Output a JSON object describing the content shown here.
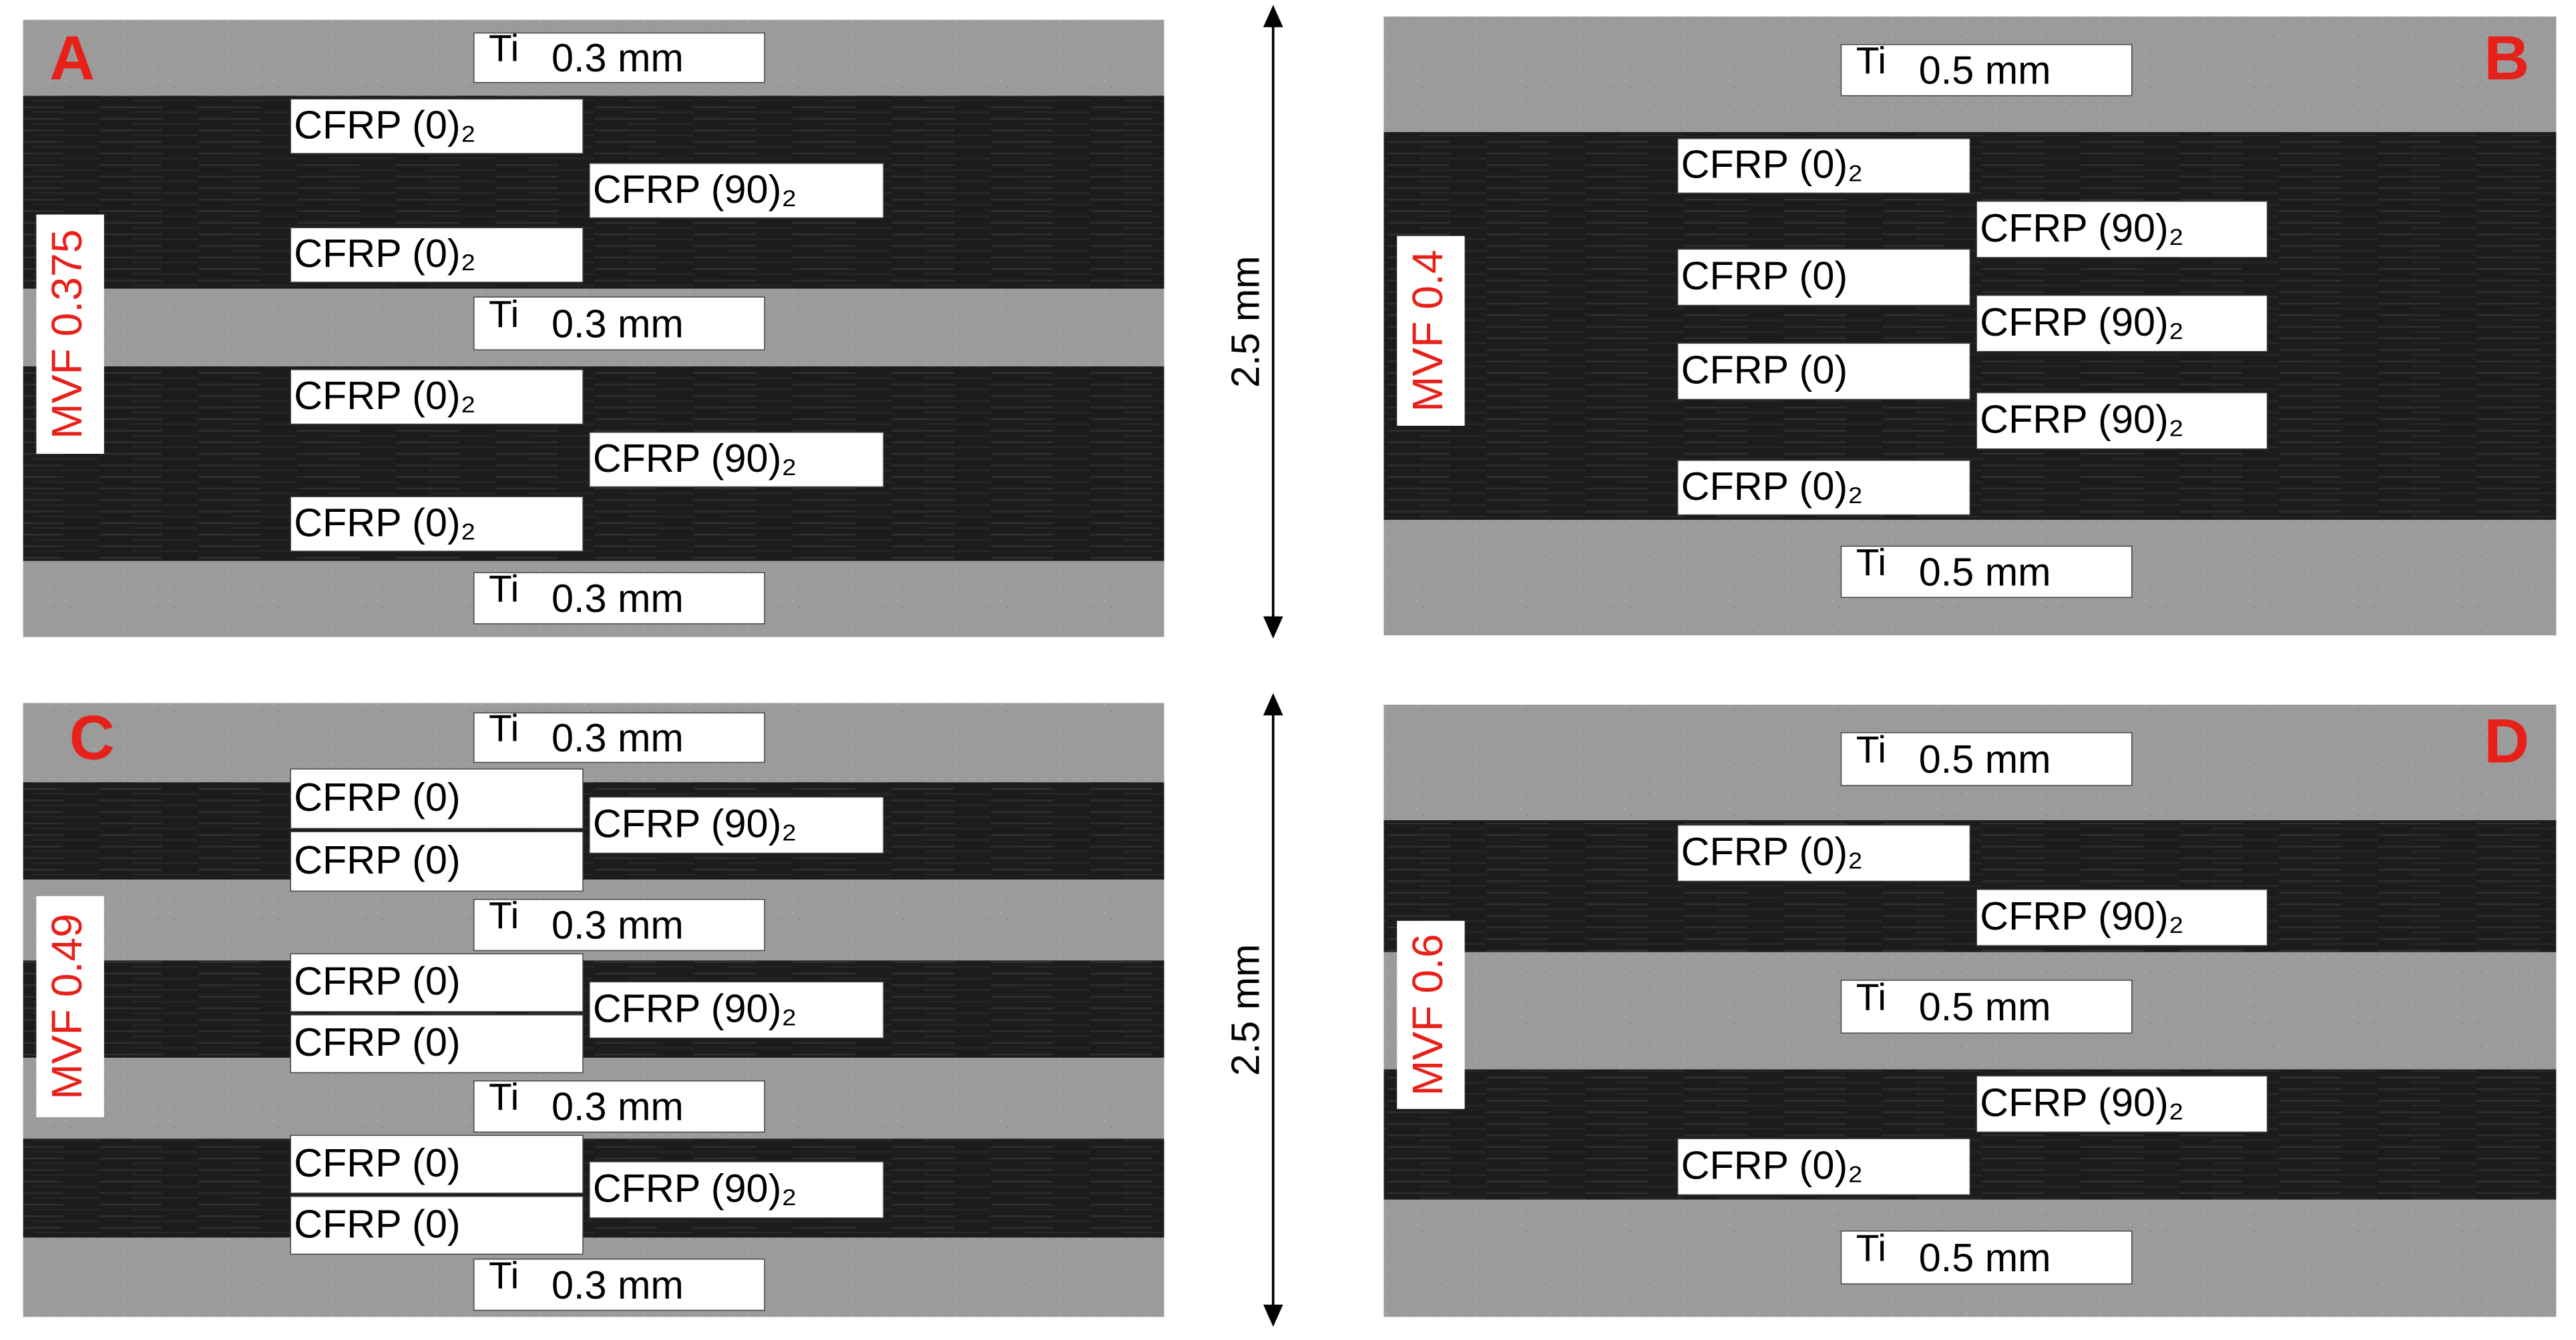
{
  "panels": [
    {
      "letter": "A",
      "mvf": "MVF 0.375",
      "labels": [
        {
          "material": "Ti",
          "thickness": "0.3 mm"
        },
        {
          "text": "CFRP (0)₂"
        },
        {
          "text": "CFRP (90)₂"
        },
        {
          "text": "CFRP (0)₂"
        },
        {
          "material": "Ti",
          "thickness": "0.3 mm"
        },
        {
          "text": "CFRP (0)₂"
        },
        {
          "text": "CFRP (90)₂"
        },
        {
          "text": "CFRP (0)₂"
        },
        {
          "material": "Ti",
          "thickness": "0.3 mm"
        }
      ]
    },
    {
      "letter": "B",
      "mvf": "MVF 0.4",
      "labels": [
        {
          "material": "Ti",
          "thickness": "0.5 mm"
        },
        {
          "text": "CFRP (0)₂"
        },
        {
          "text": "CFRP (90)₂"
        },
        {
          "text": "CFRP (0)"
        },
        {
          "text": "CFRP (90)₂"
        },
        {
          "text": "CFRP (0)"
        },
        {
          "text": "CFRP (90)₂"
        },
        {
          "text": "CFRP (0)₂"
        },
        {
          "material": "Ti",
          "thickness": "0.5 mm"
        }
      ]
    },
    {
      "letter": "C",
      "mvf": "MVF 0.49",
      "labels": [
        {
          "material": "Ti",
          "thickness": "0.3 mm"
        },
        {
          "text": "CFRP (0)"
        },
        {
          "text": "CFRP (0)"
        },
        {
          "text": "CFRP (90)₂"
        },
        {
          "material": "Ti",
          "thickness": "0.3 mm"
        },
        {
          "text": "CFRP (0)"
        },
        {
          "text": "CFRP (0)"
        },
        {
          "text": "CFRP (90)₂"
        },
        {
          "material": "Ti",
          "thickness": "0.3 mm"
        },
        {
          "text": "CFRP (0)"
        },
        {
          "text": "CFRP (0)"
        },
        {
          "text": "CFRP (90)₂"
        },
        {
          "material": "Ti",
          "thickness": "0.3 mm"
        }
      ]
    },
    {
      "letter": "D",
      "mvf": "MVF 0.6",
      "labels": [
        {
          "material": "Ti",
          "thickness": "0.5 mm"
        },
        {
          "text": "CFRP (0)₂"
        },
        {
          "text": "CFRP (90)₂"
        },
        {
          "material": "Ti",
          "thickness": "0.5 mm"
        },
        {
          "text": "CFRP (90)₂"
        },
        {
          "text": "CFRP (0)₂"
        },
        {
          "material": "Ti",
          "thickness": "0.5 mm"
        }
      ]
    }
  ],
  "scale_bars": [
    "2.5 mm",
    "2.5 mm"
  ]
}
